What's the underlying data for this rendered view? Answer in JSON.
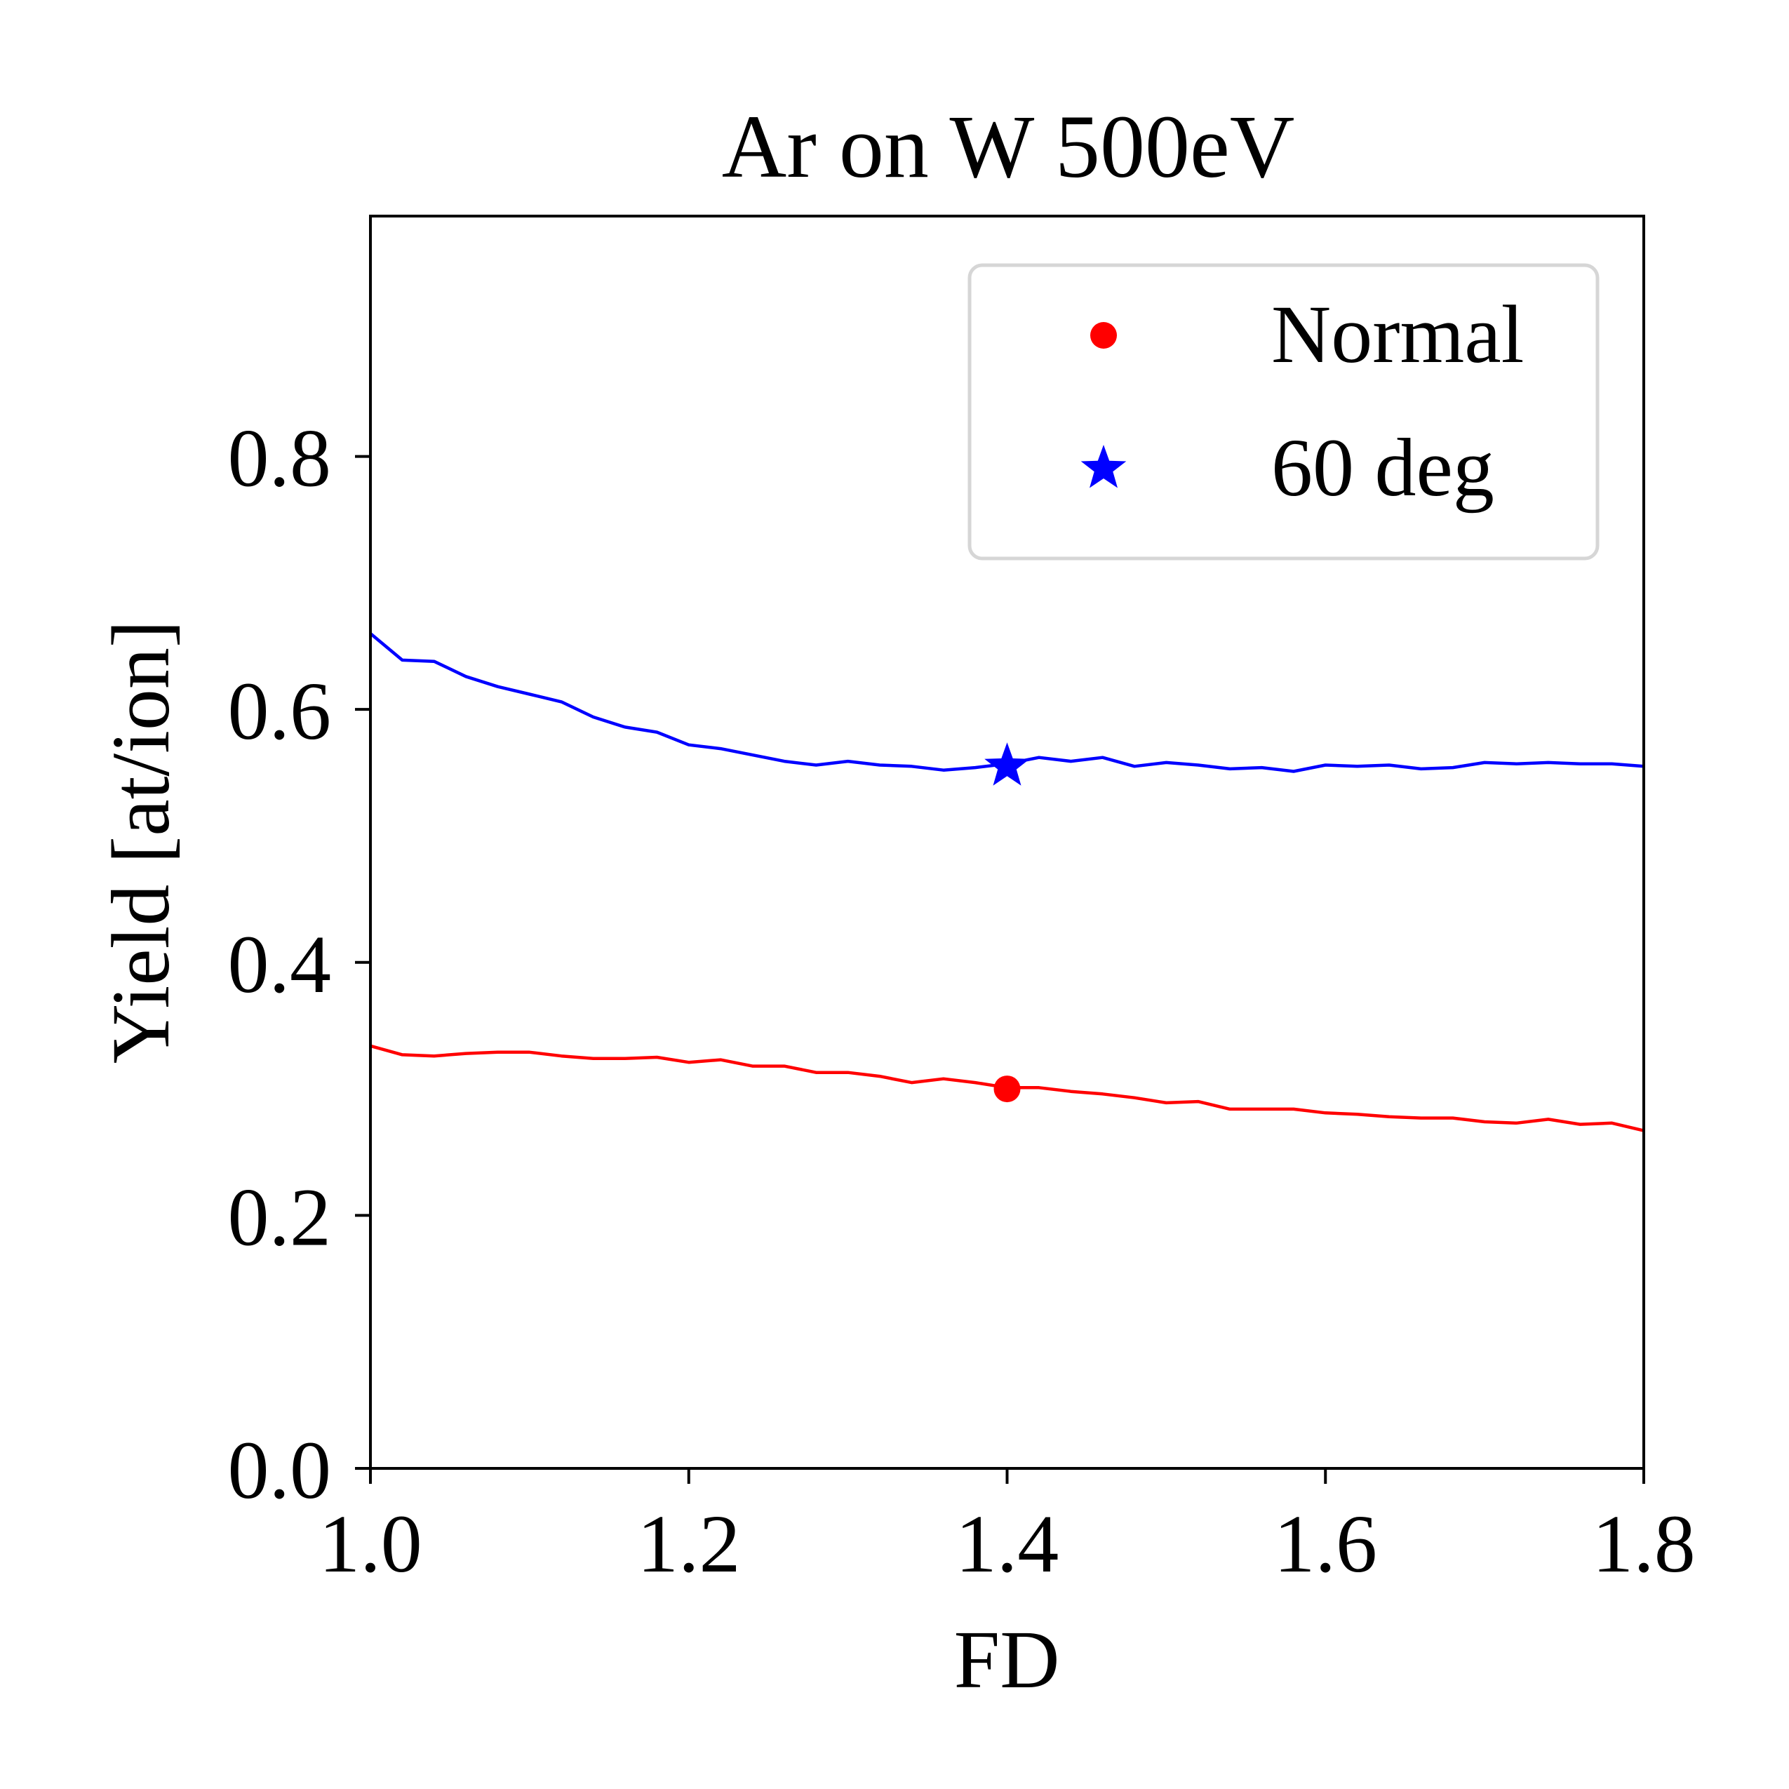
{
  "chart_data": {
    "type": "line",
    "title": "Ar on W 500eV",
    "xlabel": "FD",
    "ylabel": "Yield [at/ion]",
    "xlim": [
      1.0,
      1.8
    ],
    "ylim": [
      0.0,
      0.99
    ],
    "xticks": [
      {
        "value": 1.0,
        "label": "1.0"
      },
      {
        "value": 1.2,
        "label": "1.2"
      },
      {
        "value": 1.4,
        "label": "1.4"
      },
      {
        "value": 1.6,
        "label": "1.6"
      },
      {
        "value": 1.8,
        "label": "1.8"
      }
    ],
    "yticks": [
      {
        "value": 0.0,
        "label": "0.0"
      },
      {
        "value": 0.2,
        "label": "0.2"
      },
      {
        "value": 0.4,
        "label": "0.4"
      },
      {
        "value": 0.6,
        "label": "0.6"
      },
      {
        "value": 0.8,
        "label": "0.8"
      }
    ],
    "grid": false,
    "legend_position": "top-right",
    "x": [
      1.0,
      1.02,
      1.04,
      1.06,
      1.08,
      1.1,
      1.12,
      1.14,
      1.16,
      1.18,
      1.2,
      1.22,
      1.24,
      1.26,
      1.28,
      1.3,
      1.32,
      1.34,
      1.36,
      1.38,
      1.4,
      1.42,
      1.44,
      1.46,
      1.48,
      1.5,
      1.52,
      1.54,
      1.56,
      1.58,
      1.6,
      1.62,
      1.64,
      1.66,
      1.68,
      1.7,
      1.72,
      1.74,
      1.76,
      1.78,
      1.8
    ],
    "series": [
      {
        "name": "Normal",
        "color": "#ff0000",
        "marker": "circle",
        "marker_x": 1.4,
        "marker_y": 0.3,
        "values": [
          0.334,
          0.327,
          0.326,
          0.328,
          0.329,
          0.329,
          0.326,
          0.324,
          0.324,
          0.325,
          0.321,
          0.323,
          0.318,
          0.318,
          0.313,
          0.313,
          0.31,
          0.305,
          0.308,
          0.305,
          0.301,
          0.301,
          0.298,
          0.296,
          0.293,
          0.289,
          0.29,
          0.284,
          0.284,
          0.284,
          0.281,
          0.28,
          0.278,
          0.277,
          0.277,
          0.274,
          0.273,
          0.276,
          0.272,
          0.273,
          0.267
        ]
      },
      {
        "name": "60 deg",
        "color": "#0000ff",
        "marker": "star",
        "marker_x": 1.4,
        "marker_y": 0.555,
        "values": [
          0.66,
          0.639,
          0.638,
          0.626,
          0.618,
          0.612,
          0.606,
          0.594,
          0.586,
          0.582,
          0.572,
          0.569,
          0.564,
          0.559,
          0.556,
          0.559,
          0.556,
          0.555,
          0.552,
          0.554,
          0.557,
          0.562,
          0.559,
          0.562,
          0.555,
          0.558,
          0.556,
          0.553,
          0.554,
          0.551,
          0.556,
          0.555,
          0.556,
          0.553,
          0.554,
          0.558,
          0.557,
          0.558,
          0.557,
          0.557,
          0.555
        ]
      }
    ]
  }
}
